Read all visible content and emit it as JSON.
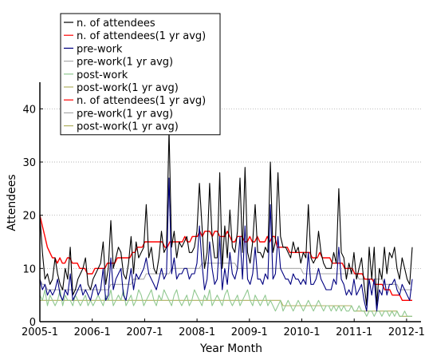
{
  "chart_data": {
    "type": "line",
    "title": "",
    "xlabel": "Year Month",
    "ylabel": "Attendees",
    "ylim": [
      0,
      45
    ],
    "y_ticks": [
      0,
      10,
      20,
      30,
      40
    ],
    "x_ticks": [
      "2005-1",
      "2006-1",
      "2007-1",
      "2008-1",
      "2009-1",
      "2010-1",
      "2011-1",
      "2012-1"
    ],
    "grid": "horizontal dotted",
    "legend_position": "top-left",
    "x_start": "2005-1",
    "series": [
      {
        "name": "n. of attendees",
        "color": "#000000",
        "values": [
          20,
          13,
          8,
          9,
          7,
          8,
          12,
          9,
          7,
          6,
          10,
          8,
          14,
          5,
          6,
          8,
          9,
          10,
          12,
          7,
          6,
          8,
          9,
          10,
          11,
          15,
          7,
          10,
          19,
          10,
          12,
          14,
          13,
          9,
          8,
          11,
          16,
          9,
          15,
          12,
          13,
          14,
          22,
          12,
          14,
          10,
          9,
          12,
          17,
          13,
          14,
          36,
          14,
          17,
          12,
          15,
          14,
          15,
          16,
          13,
          13,
          14,
          17,
          26,
          18,
          10,
          13,
          26,
          16,
          12,
          12,
          28,
          10,
          18,
          12,
          21,
          14,
          13,
          17,
          27,
          13,
          29,
          13,
          11,
          15,
          22,
          13,
          13,
          12,
          14,
          13,
          30,
          13,
          15,
          28,
          16,
          14,
          14,
          13,
          12,
          15,
          13,
          14,
          11,
          13,
          12,
          22,
          12,
          11,
          12,
          17,
          13,
          11,
          10,
          10,
          10,
          13,
          11,
          25,
          13,
          12,
          8,
          11,
          9,
          13,
          8,
          10,
          12,
          7,
          3,
          14,
          8,
          14,
          3,
          10,
          8,
          14,
          9,
          13,
          12,
          14,
          10,
          8,
          12,
          10,
          8,
          7,
          14
        ]
      },
      {
        "name": "n. of attendees(1 yr avg)",
        "color": "#ff0000",
        "values": [
          20,
          18,
          16,
          14,
          13,
          12,
          12,
          11,
          12,
          11,
          11,
          12,
          12,
          11,
          11,
          11,
          10,
          10,
          10,
          9,
          9,
          9,
          10,
          10,
          10,
          10,
          10,
          11,
          11,
          11,
          11,
          12,
          12,
          12,
          12,
          12,
          12,
          13,
          13,
          14,
          14,
          14,
          15,
          15,
          15,
          15,
          15,
          15,
          15,
          15,
          14,
          14,
          15,
          15,
          15,
          15,
          15,
          15,
          16,
          15,
          15,
          16,
          16,
          16,
          17,
          16,
          17,
          17,
          17,
          16,
          17,
          17,
          16,
          16,
          16,
          17,
          16,
          15,
          15,
          16,
          16,
          16,
          15,
          15,
          16,
          15,
          15,
          16,
          15,
          15,
          15,
          16,
          15,
          16,
          16,
          14,
          14,
          14,
          14,
          14,
          13,
          13,
          13,
          13,
          13,
          13,
          13,
          13,
          13,
          12,
          12,
          12,
          13,
          12,
          12,
          12,
          12,
          11,
          11,
          11,
          11,
          11,
          10,
          10,
          10,
          10,
          9,
          9,
          9,
          9,
          8,
          8,
          8,
          8,
          7,
          7,
          7,
          7,
          6,
          6,
          6,
          5,
          5,
          5,
          5,
          4,
          4,
          4,
          4,
          4
        ]
      },
      {
        "name": "pre-work",
        "color": "#000080",
        "values": [
          8,
          6,
          7,
          5,
          6,
          5,
          6,
          8,
          5,
          4,
          6,
          5,
          9,
          4,
          5,
          6,
          7,
          5,
          6,
          5,
          4,
          6,
          7,
          5,
          6,
          10,
          4,
          5,
          12,
          6,
          8,
          9,
          10,
          5,
          4,
          7,
          10,
          6,
          9,
          8,
          9,
          10,
          12,
          9,
          8,
          7,
          6,
          8,
          10,
          8,
          9,
          27,
          9,
          12,
          8,
          9,
          9,
          10,
          10,
          8,
          9,
          9,
          11,
          18,
          11,
          6,
          8,
          15,
          10,
          7,
          8,
          16,
          6,
          10,
          7,
          13,
          9,
          8,
          10,
          16,
          8,
          18,
          8,
          7,
          9,
          14,
          8,
          8,
          7,
          9,
          8,
          22,
          8,
          9,
          16,
          10,
          9,
          8,
          8,
          7,
          9,
          8,
          8,
          7,
          8,
          7,
          13,
          7,
          7,
          8,
          10,
          8,
          7,
          6,
          6,
          6,
          8,
          7,
          14,
          8,
          7,
          5,
          6,
          5,
          8,
          5,
          6,
          7,
          4,
          2,
          8,
          5,
          8,
          2,
          6,
          5,
          8,
          5,
          7,
          7,
          8,
          6,
          5,
          7,
          6,
          5,
          4,
          8
        ]
      },
      {
        "name": "pre-work(1 yr avg)",
        "color": "#aaaaaa",
        "values": [
          8,
          7,
          7,
          6,
          6,
          6,
          6,
          6,
          6,
          6,
          6,
          6,
          6,
          6,
          6,
          6,
          6,
          6,
          6,
          6,
          6,
          6,
          6,
          6,
          6,
          6,
          6,
          6,
          7,
          7,
          7,
          7,
          7,
          7,
          7,
          7,
          7,
          8,
          8,
          8,
          8,
          8,
          9,
          9,
          9,
          9,
          9,
          9,
          9,
          9,
          9,
          9,
          10,
          10,
          10,
          10,
          10,
          10,
          10,
          10,
          10,
          10,
          10,
          10,
          11,
          11,
          11,
          11,
          11,
          11,
          11,
          11,
          11,
          11,
          11,
          11,
          11,
          11,
          10,
          10,
          10,
          10,
          10,
          10,
          10,
          10,
          10,
          10,
          10,
          10,
          10,
          10,
          10,
          10,
          10,
          10,
          10,
          10,
          10,
          10,
          10,
          10,
          10,
          10,
          9,
          9,
          9,
          9,
          9,
          9,
          9,
          9,
          9,
          9,
          9,
          9,
          9,
          9,
          9,
          9,
          9,
          9,
          9,
          9,
          9,
          9,
          8,
          8,
          8,
          8,
          8,
          8,
          8,
          8,
          8,
          8,
          7,
          7,
          7,
          7,
          7,
          7,
          6,
          6,
          6,
          6,
          6,
          6
        ]
      },
      {
        "name": "post-work",
        "color": "#90c890",
        "values": [
          5,
          4,
          6,
          3,
          5,
          4,
          3,
          4,
          6,
          3,
          5,
          4,
          4,
          3,
          5,
          4,
          3,
          4,
          5,
          3,
          4,
          3,
          4,
          5,
          4,
          3,
          5,
          4,
          6,
          3,
          4,
          5,
          4,
          6,
          3,
          4,
          5,
          3,
          4,
          6,
          5,
          3,
          4,
          5,
          6,
          4,
          3,
          5,
          4,
          6,
          5,
          4,
          3,
          5,
          6,
          4,
          3,
          4,
          5,
          3,
          4,
          6,
          5,
          4,
          3,
          5,
          4,
          6,
          3,
          4,
          5,
          4,
          3,
          5,
          6,
          4,
          3,
          4,
          5,
          3,
          4,
          5,
          6,
          4,
          3,
          5,
          4,
          3,
          4,
          5,
          3,
          4,
          3,
          2,
          3,
          4,
          2,
          3,
          4,
          3,
          2,
          3,
          4,
          3,
          2,
          3,
          4,
          3,
          2,
          3,
          4,
          3,
          2,
          3,
          3,
          2,
          3,
          2,
          3,
          2,
          3,
          2,
          2,
          3,
          2,
          2,
          3,
          2,
          2,
          1,
          2,
          2,
          1,
          2,
          2,
          1,
          2,
          2,
          1,
          2,
          1,
          2,
          1,
          1,
          2,
          1,
          1,
          1
        ]
      },
      {
        "name": "post-work(1 yr avg)",
        "color": "#b0b060",
        "values": [
          4,
          4,
          4,
          4,
          4,
          4,
          4,
          4,
          4,
          4,
          4,
          4,
          4,
          4,
          4,
          4,
          4,
          4,
          4,
          4,
          4,
          4,
          4,
          4,
          4,
          4,
          4,
          4,
          4,
          4,
          4,
          4,
          4,
          4,
          4,
          4,
          4,
          4,
          4,
          4,
          4,
          4,
          4,
          4,
          4,
          4,
          4,
          4,
          4,
          4,
          4,
          4,
          4,
          4,
          4,
          4,
          4,
          4,
          4,
          4,
          4,
          4,
          4,
          4,
          4,
          4,
          4,
          4,
          4,
          4,
          4,
          4,
          4,
          4,
          4,
          4,
          4,
          4,
          4,
          4,
          4,
          4,
          4,
          4,
          4,
          4,
          4,
          4,
          4,
          4,
          4,
          4,
          4,
          4,
          4,
          4,
          3,
          3,
          3,
          3,
          3,
          3,
          3,
          3,
          3,
          3,
          3,
          3,
          3,
          3,
          3,
          3,
          3,
          3,
          3,
          3,
          3,
          3,
          3,
          3,
          3,
          3,
          3,
          3,
          2,
          2,
          2,
          2,
          2,
          2,
          2,
          2,
          2,
          2,
          2,
          2,
          2,
          2,
          2,
          2,
          2,
          2,
          1,
          1,
          1,
          1,
          1,
          1
        ]
      },
      {
        "name": "n. of attendees(1 yr avg)",
        "color": "#ff0000",
        "values": []
      },
      {
        "name": "pre-work(1 yr avg)",
        "color": "#aaaaaa",
        "values": []
      },
      {
        "name": "post-work(1 yr avg)",
        "color": "#b0b060",
        "values": []
      }
    ]
  }
}
